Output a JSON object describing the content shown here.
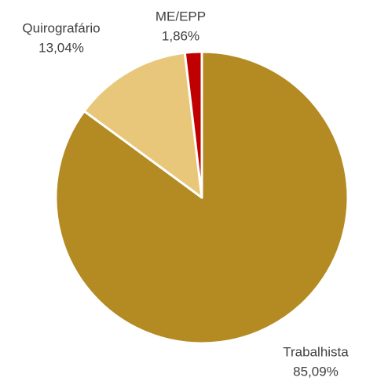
{
  "chart_data": {
    "type": "pie",
    "categories": [
      "Trabalhista",
      "Quirografário",
      "ME/EPP"
    ],
    "values": [
      85.09,
      13.04,
      1.86
    ],
    "value_labels": [
      "85,09%",
      "13,04%",
      "1,86%"
    ],
    "colors": [
      "#B38B22",
      "#E8C77A",
      "#C00000"
    ]
  }
}
